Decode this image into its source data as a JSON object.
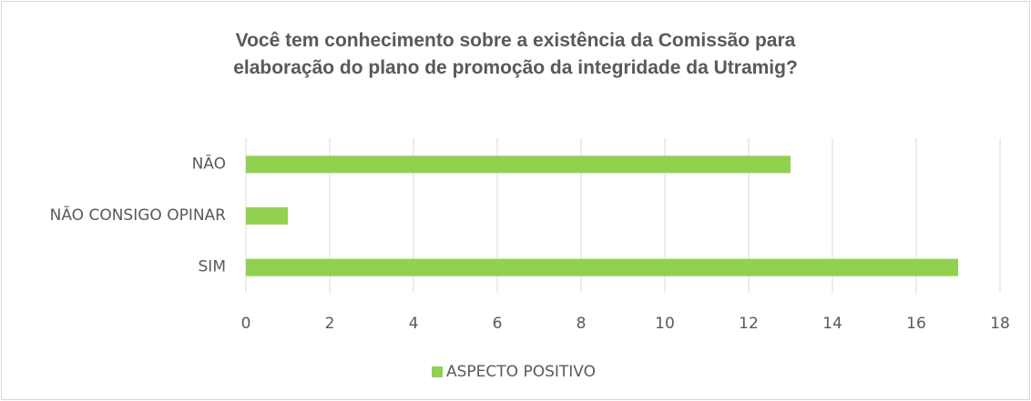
{
  "chart_data": {
    "type": "barh",
    "title": "Você tem conhecimento sobre a existência da Comissão para\nelaboração do plano de promoção da integridade da Utramig?",
    "categories": [
      "NÃO",
      "NÃO CONSIGO OPINAR",
      "SIM"
    ],
    "series": [
      {
        "name": "ASPECTO POSITIVO",
        "color": "#92d050",
        "values": [
          13,
          1,
          17
        ]
      }
    ],
    "xlim": [
      0,
      18
    ],
    "xticks": [
      0,
      2,
      4,
      6,
      8,
      10,
      12,
      14,
      16,
      18
    ],
    "grid": true,
    "legend": "bottom"
  }
}
